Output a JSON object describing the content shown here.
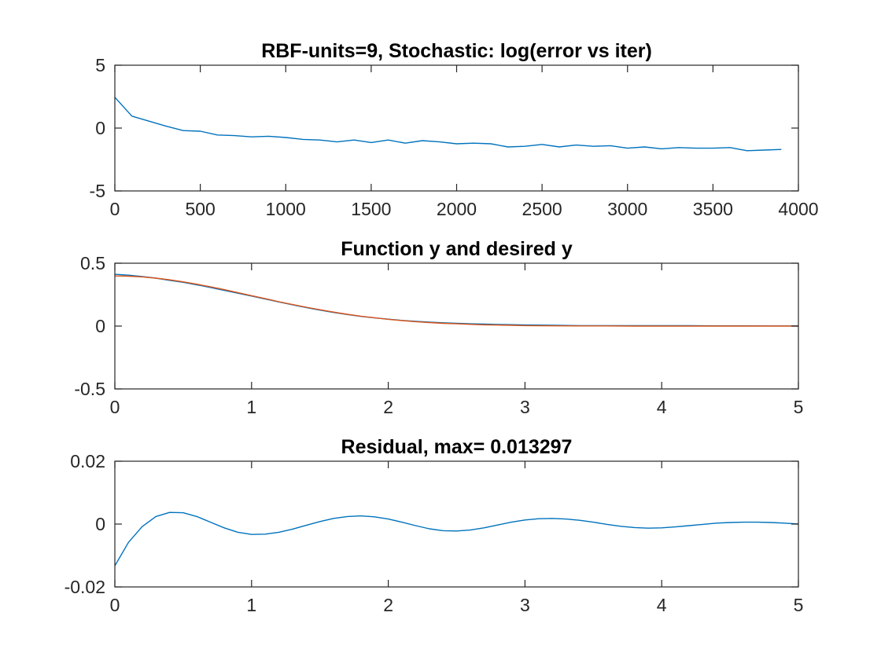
{
  "chart_data": [
    {
      "type": "line",
      "title": "RBF-units=9, Stochastic: log(error vs iter)",
      "xlim": [
        0,
        4000
      ],
      "ylim": [
        -5,
        5
      ],
      "xticks": [
        0,
        500,
        1000,
        1500,
        2000,
        2500,
        3000,
        3500,
        4000
      ],
      "xtick_labels": [
        "0",
        "500",
        "1000",
        "1500",
        "2000",
        "2500",
        "3000",
        "3500",
        "4000"
      ],
      "yticks": [
        -5,
        0,
        5
      ],
      "ytick_labels": [
        "-5",
        "0",
        "5"
      ],
      "grid": false,
      "series": [
        {
          "color": "#0072BD",
          "x": [
            0,
            100,
            200,
            300,
            400,
            500,
            600,
            700,
            800,
            900,
            1000,
            1100,
            1200,
            1300,
            1400,
            1500,
            1600,
            1700,
            1800,
            1900,
            2000,
            2100,
            2200,
            2300,
            2400,
            2500,
            2600,
            2700,
            2800,
            2900,
            3000,
            3100,
            3200,
            3300,
            3400,
            3500,
            3600,
            3700,
            3800,
            3900
          ],
          "y": [
            2.45,
            0.95,
            0.55,
            0.15,
            -0.2,
            -0.25,
            -0.55,
            -0.6,
            -0.7,
            -0.65,
            -0.75,
            -0.9,
            -0.95,
            -1.1,
            -0.95,
            -1.15,
            -0.95,
            -1.2,
            -1.0,
            -1.1,
            -1.25,
            -1.2,
            -1.25,
            -1.5,
            -1.45,
            -1.3,
            -1.5,
            -1.35,
            -1.45,
            -1.4,
            -1.6,
            -1.5,
            -1.65,
            -1.55,
            -1.6,
            -1.6,
            -1.55,
            -1.8,
            -1.75,
            -1.7
          ]
        }
      ]
    },
    {
      "type": "line",
      "title": "Function y and desired y",
      "xlim": [
        0,
        5
      ],
      "ylim": [
        -0.5,
        0.5
      ],
      "xticks": [
        0,
        1,
        2,
        3,
        4,
        5
      ],
      "xtick_labels": [
        "0",
        "1",
        "2",
        "3",
        "4",
        "5"
      ],
      "yticks": [
        -0.5,
        0,
        0.5
      ],
      "ytick_labels": [
        "-0.5",
        "0",
        "0.5"
      ],
      "grid": false,
      "series": [
        {
          "color": "#0072BD",
          "x": [
            0,
            0.1,
            0.2,
            0.3,
            0.4,
            0.5,
            0.6,
            0.7,
            0.8,
            0.9,
            1.0,
            1.1,
            1.2,
            1.3,
            1.4,
            1.5,
            1.6,
            1.7,
            1.8,
            1.9,
            2.0,
            2.1,
            2.2,
            2.3,
            2.4,
            2.5,
            2.6,
            2.7,
            2.8,
            2.9,
            3.0,
            3.2,
            3.4,
            3.6,
            3.8,
            4.0,
            4.2,
            4.4,
            4.6,
            4.8,
            5.0
          ],
          "y": [
            0.412,
            0.405,
            0.394,
            0.381,
            0.364,
            0.348,
            0.328,
            0.307,
            0.284,
            0.261,
            0.239,
            0.215,
            0.192,
            0.169,
            0.147,
            0.127,
            0.108,
            0.092,
            0.077,
            0.065,
            0.055,
            0.045,
            0.038,
            0.031,
            0.026,
            0.022,
            0.018,
            0.016,
            0.013,
            0.011,
            0.009,
            0.006,
            0.004,
            0.003,
            0.003,
            0.003,
            0.003,
            0.002,
            0.002,
            0.001,
            0.001
          ]
        },
        {
          "color": "#D95319",
          "x": [
            0,
            0.1,
            0.2,
            0.3,
            0.4,
            0.5,
            0.6,
            0.7,
            0.8,
            0.9,
            1.0,
            1.1,
            1.2,
            1.3,
            1.4,
            1.5,
            1.6,
            1.7,
            1.8,
            1.9,
            2.0,
            2.1,
            2.2,
            2.3,
            2.4,
            2.5,
            2.6,
            2.7,
            2.8,
            2.9,
            3.0,
            3.2,
            3.4,
            3.6,
            3.8,
            4.0,
            4.2,
            4.4,
            4.6,
            4.8,
            5.0
          ],
          "y": [
            0.399,
            0.397,
            0.391,
            0.381,
            0.368,
            0.352,
            0.333,
            0.312,
            0.29,
            0.266,
            0.242,
            0.218,
            0.194,
            0.171,
            0.15,
            0.13,
            0.111,
            0.094,
            0.079,
            0.066,
            0.054,
            0.044,
            0.035,
            0.028,
            0.022,
            0.018,
            0.014,
            0.01,
            0.008,
            0.006,
            0.004,
            0.002,
            0.001,
            0.001,
            0.0,
            0.0,
            0.0,
            0.0,
            0.0,
            0.0,
            0.0
          ]
        }
      ]
    },
    {
      "type": "line",
      "title": "Residual, max= 0.013297",
      "xlim": [
        0,
        5
      ],
      "ylim": [
        -0.02,
        0.02
      ],
      "xticks": [
        0,
        1,
        2,
        3,
        4,
        5
      ],
      "xtick_labels": [
        "0",
        "1",
        "2",
        "3",
        "4",
        "5"
      ],
      "yticks": [
        -0.02,
        0,
        0.02
      ],
      "ytick_labels": [
        "-0.02",
        "0",
        "0.02"
      ],
      "grid": false,
      "series": [
        {
          "color": "#0072BD",
          "x": [
            0,
            0.1,
            0.2,
            0.3,
            0.4,
            0.5,
            0.6,
            0.7,
            0.8,
            0.9,
            1.0,
            1.1,
            1.2,
            1.3,
            1.4,
            1.5,
            1.6,
            1.7,
            1.8,
            1.9,
            2.0,
            2.1,
            2.2,
            2.3,
            2.4,
            2.5,
            2.6,
            2.7,
            2.8,
            2.9,
            3.0,
            3.1,
            3.2,
            3.3,
            3.4,
            3.5,
            3.6,
            3.7,
            3.8,
            3.9,
            4.0,
            4.1,
            4.2,
            4.3,
            4.4,
            4.5,
            4.6,
            4.7,
            4.8,
            4.9,
            5.0
          ],
          "y": [
            -0.0133,
            -0.0058,
            -0.0008,
            0.0024,
            0.0037,
            0.0036,
            0.0024,
            0.0006,
            -0.0012,
            -0.0026,
            -0.0033,
            -0.0032,
            -0.0026,
            -0.0016,
            -0.0004,
            0.0008,
            0.0018,
            0.0024,
            0.0026,
            0.0023,
            0.0016,
            0.0006,
            -0.0005,
            -0.0015,
            -0.0021,
            -0.0022,
            -0.0019,
            -0.0012,
            -0.0003,
            0.0006,
            0.0013,
            0.0017,
            0.0018,
            0.0016,
            0.0012,
            0.0006,
            -0.0001,
            -0.0007,
            -0.0011,
            -0.0013,
            -0.0012,
            -0.0009,
            -0.0005,
            -0.0001,
            0.0003,
            0.0005,
            0.0006,
            0.0006,
            0.0005,
            0.0003,
            0.0
          ]
        }
      ]
    }
  ]
}
